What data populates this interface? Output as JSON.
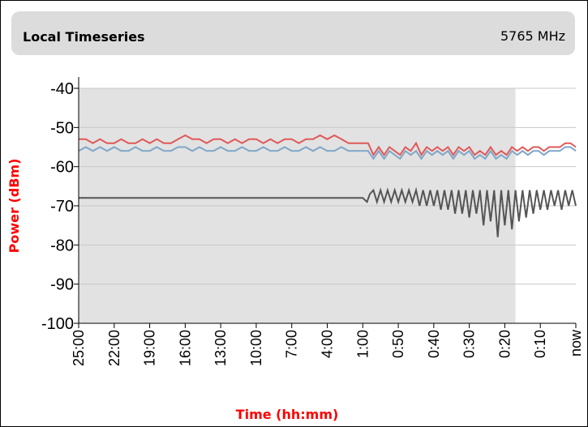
{
  "header": {
    "title": "Local Timeseries",
    "frequency": "5765 MHz"
  },
  "colors": {
    "shade": "#e2e2e2",
    "grid": "#c8c8c8",
    "axis": "#000000",
    "label": "#ff0000",
    "series_red": "#e05858",
    "series_blue": "#7fa6c8",
    "series_gray": "#555555"
  },
  "chart_data": {
    "type": "line",
    "title": "",
    "xlabel": "Time (hh:mm)",
    "ylabel": "Power (dBm)",
    "ylim": [
      -100,
      -40
    ],
    "yticks": [
      -40,
      -50,
      -60,
      -70,
      -80,
      -90,
      -100
    ],
    "grid": true,
    "legend": "none",
    "x_tick_labels": [
      "25:00",
      "22:00",
      "19:00",
      "16:00",
      "13:00",
      "10:00",
      "7:00",
      "4:00",
      "1:00",
      "0:50",
      "0:40",
      "0:30",
      "0:20",
      "0:10",
      "now"
    ],
    "shaded_region": {
      "from_tick": 0,
      "to_tick": 12.3
    },
    "series": [
      {
        "color": "red",
        "points": [
          [
            0,
            -53
          ],
          [
            0.2,
            -53
          ],
          [
            0.4,
            -54
          ],
          [
            0.6,
            -53
          ],
          [
            0.8,
            -54
          ],
          [
            1,
            -54
          ],
          [
            1.2,
            -53
          ],
          [
            1.4,
            -54
          ],
          [
            1.6,
            -54
          ],
          [
            1.8,
            -53
          ],
          [
            2,
            -54
          ],
          [
            2.2,
            -53
          ],
          [
            2.4,
            -54
          ],
          [
            2.6,
            -54
          ],
          [
            2.8,
            -53
          ],
          [
            3,
            -52
          ],
          [
            3.2,
            -53
          ],
          [
            3.4,
            -53
          ],
          [
            3.6,
            -54
          ],
          [
            3.8,
            -53
          ],
          [
            4,
            -53
          ],
          [
            4.2,
            -54
          ],
          [
            4.4,
            -53
          ],
          [
            4.6,
            -54
          ],
          [
            4.8,
            -53
          ],
          [
            5,
            -53
          ],
          [
            5.2,
            -54
          ],
          [
            5.4,
            -53
          ],
          [
            5.6,
            -54
          ],
          [
            5.8,
            -53
          ],
          [
            6,
            -53
          ],
          [
            6.2,
            -54
          ],
          [
            6.4,
            -53
          ],
          [
            6.6,
            -53
          ],
          [
            6.8,
            -52
          ],
          [
            7,
            -53
          ],
          [
            7.2,
            -52
          ],
          [
            7.4,
            -53
          ],
          [
            7.6,
            -54
          ],
          [
            7.8,
            -54
          ],
          [
            8,
            -54
          ],
          [
            8.15,
            -54
          ],
          [
            8.3,
            -57
          ],
          [
            8.45,
            -55
          ],
          [
            8.6,
            -57
          ],
          [
            8.75,
            -55
          ],
          [
            8.9,
            -56
          ],
          [
            9.05,
            -57
          ],
          [
            9.2,
            -55
          ],
          [
            9.35,
            -56
          ],
          [
            9.5,
            -54
          ],
          [
            9.65,
            -57
          ],
          [
            9.8,
            -55
          ],
          [
            9.95,
            -56
          ],
          [
            10.1,
            -55
          ],
          [
            10.25,
            -56
          ],
          [
            10.4,
            -55
          ],
          [
            10.55,
            -57
          ],
          [
            10.7,
            -55
          ],
          [
            10.85,
            -56
          ],
          [
            11,
            -55
          ],
          [
            11.15,
            -57
          ],
          [
            11.3,
            -56
          ],
          [
            11.45,
            -57
          ],
          [
            11.6,
            -55
          ],
          [
            11.75,
            -57
          ],
          [
            11.9,
            -56
          ],
          [
            12.05,
            -57
          ],
          [
            12.2,
            -55
          ],
          [
            12.35,
            -56
          ],
          [
            12.5,
            -55
          ],
          [
            12.65,
            -56
          ],
          [
            12.8,
            -55
          ],
          [
            12.95,
            -55
          ],
          [
            13.1,
            -56
          ],
          [
            13.25,
            -55
          ],
          [
            13.4,
            -55
          ],
          [
            13.55,
            -55
          ],
          [
            13.7,
            -54
          ],
          [
            13.85,
            -54
          ],
          [
            14,
            -55
          ]
        ]
      },
      {
        "color": "blue",
        "points": [
          [
            0,
            -56
          ],
          [
            0.2,
            -55
          ],
          [
            0.4,
            -56
          ],
          [
            0.6,
            -55
          ],
          [
            0.8,
            -56
          ],
          [
            1,
            -55
          ],
          [
            1.2,
            -56
          ],
          [
            1.4,
            -56
          ],
          [
            1.6,
            -55
          ],
          [
            1.8,
            -56
          ],
          [
            2,
            -56
          ],
          [
            2.2,
            -55
          ],
          [
            2.4,
            -56
          ],
          [
            2.6,
            -56
          ],
          [
            2.8,
            -55
          ],
          [
            3,
            -55
          ],
          [
            3.2,
            -56
          ],
          [
            3.4,
            -55
          ],
          [
            3.6,
            -56
          ],
          [
            3.8,
            -56
          ],
          [
            4,
            -55
          ],
          [
            4.2,
            -56
          ],
          [
            4.4,
            -56
          ],
          [
            4.6,
            -55
          ],
          [
            4.8,
            -56
          ],
          [
            5,
            -56
          ],
          [
            5.2,
            -55
          ],
          [
            5.4,
            -56
          ],
          [
            5.6,
            -56
          ],
          [
            5.8,
            -55
          ],
          [
            6,
            -56
          ],
          [
            6.2,
            -56
          ],
          [
            6.4,
            -55
          ],
          [
            6.6,
            -56
          ],
          [
            6.8,
            -55
          ],
          [
            7,
            -56
          ],
          [
            7.2,
            -56
          ],
          [
            7.4,
            -55
          ],
          [
            7.6,
            -56
          ],
          [
            7.8,
            -56
          ],
          [
            8,
            -56
          ],
          [
            8.15,
            -56
          ],
          [
            8.3,
            -58
          ],
          [
            8.45,
            -56
          ],
          [
            8.6,
            -58
          ],
          [
            8.75,
            -56
          ],
          [
            8.9,
            -57
          ],
          [
            9.05,
            -58
          ],
          [
            9.2,
            -56
          ],
          [
            9.35,
            -57
          ],
          [
            9.5,
            -56
          ],
          [
            9.65,
            -58
          ],
          [
            9.8,
            -56
          ],
          [
            9.95,
            -57
          ],
          [
            10.1,
            -56
          ],
          [
            10.25,
            -57
          ],
          [
            10.4,
            -56
          ],
          [
            10.55,
            -58
          ],
          [
            10.7,
            -56
          ],
          [
            10.85,
            -57
          ],
          [
            11,
            -56
          ],
          [
            11.15,
            -58
          ],
          [
            11.3,
            -57
          ],
          [
            11.45,
            -58
          ],
          [
            11.6,
            -56
          ],
          [
            11.75,
            -58
          ],
          [
            11.9,
            -57
          ],
          [
            12.05,
            -58
          ],
          [
            12.2,
            -56
          ],
          [
            12.35,
            -57
          ],
          [
            12.5,
            -56
          ],
          [
            12.65,
            -57
          ],
          [
            12.8,
            -56
          ],
          [
            12.95,
            -56
          ],
          [
            13.1,
            -57
          ],
          [
            13.25,
            -56
          ],
          [
            13.4,
            -56
          ],
          [
            13.55,
            -56
          ],
          [
            13.7,
            -55
          ],
          [
            13.85,
            -55
          ],
          [
            14,
            -56
          ]
        ]
      },
      {
        "color": "gray",
        "points": [
          [
            0,
            -68
          ],
          [
            8,
            -68
          ],
          [
            8.12,
            -69
          ],
          [
            8.2,
            -67
          ],
          [
            8.3,
            -66
          ],
          [
            8.4,
            -69
          ],
          [
            8.5,
            -66
          ],
          [
            8.6,
            -69
          ],
          [
            8.7,
            -66
          ],
          [
            8.8,
            -69
          ],
          [
            8.9,
            -66
          ],
          [
            9,
            -69
          ],
          [
            9.1,
            -66
          ],
          [
            9.2,
            -69
          ],
          [
            9.3,
            -66
          ],
          [
            9.4,
            -69
          ],
          [
            9.5,
            -66
          ],
          [
            9.6,
            -70
          ],
          [
            9.7,
            -66
          ],
          [
            9.8,
            -70
          ],
          [
            9.9,
            -66
          ],
          [
            10,
            -70
          ],
          [
            10.1,
            -66
          ],
          [
            10.2,
            -71
          ],
          [
            10.3,
            -66
          ],
          [
            10.4,
            -71
          ],
          [
            10.5,
            -66
          ],
          [
            10.6,
            -72
          ],
          [
            10.7,
            -66
          ],
          [
            10.8,
            -72
          ],
          [
            10.9,
            -66
          ],
          [
            11,
            -73
          ],
          [
            11.1,
            -66
          ],
          [
            11.2,
            -72
          ],
          [
            11.3,
            -66
          ],
          [
            11.4,
            -75
          ],
          [
            11.5,
            -66
          ],
          [
            11.6,
            -74
          ],
          [
            11.7,
            -66
          ],
          [
            11.8,
            -78
          ],
          [
            11.9,
            -66
          ],
          [
            12,
            -75
          ],
          [
            12.1,
            -66
          ],
          [
            12.2,
            -76
          ],
          [
            12.3,
            -66
          ],
          [
            12.4,
            -74
          ],
          [
            12.5,
            -66
          ],
          [
            12.6,
            -73
          ],
          [
            12.7,
            -66
          ],
          [
            12.8,
            -72
          ],
          [
            12.9,
            -66
          ],
          [
            13,
            -71
          ],
          [
            13.1,
            -66
          ],
          [
            13.2,
            -71
          ],
          [
            13.3,
            -66
          ],
          [
            13.4,
            -70
          ],
          [
            13.5,
            -66
          ],
          [
            13.6,
            -71
          ],
          [
            13.7,
            -66
          ],
          [
            13.8,
            -70
          ],
          [
            13.9,
            -66
          ],
          [
            14,
            -70
          ]
        ]
      }
    ]
  }
}
